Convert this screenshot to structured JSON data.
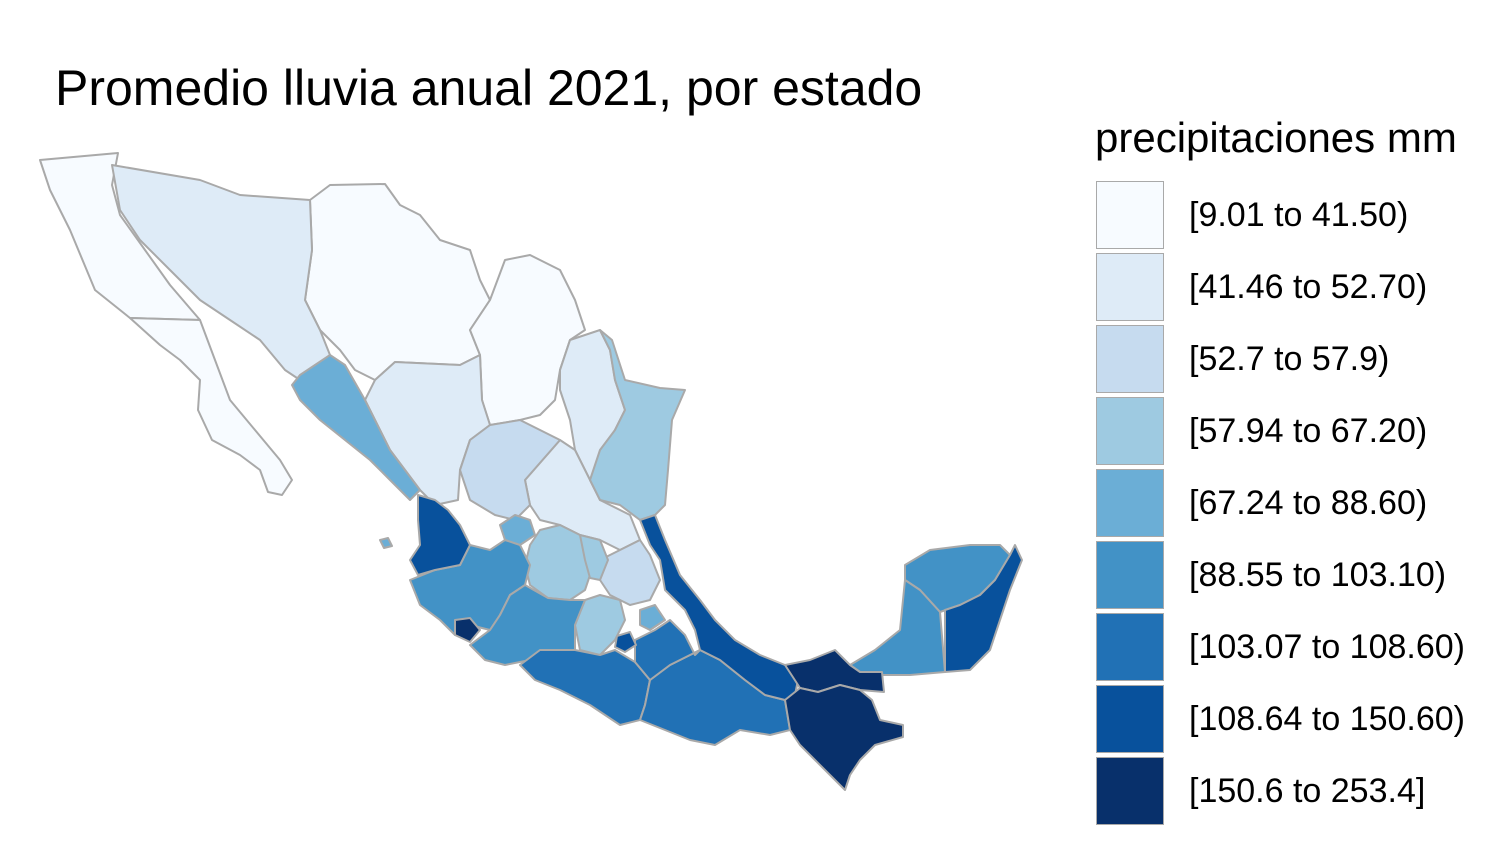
{
  "title": "Promedio lluvia anual 2021, por estado",
  "legend": {
    "title": "precipitaciones mm",
    "bins": [
      {
        "label": "[9.01 to 41.50)",
        "color": "#f7fbff"
      },
      {
        "label": "[41.46 to 52.70)",
        "color": "#deebf7"
      },
      {
        "label": "[52.7 to 57.9)",
        "color": "#c6dbef"
      },
      {
        "label": "[57.94 to 67.20)",
        "color": "#9ecae1"
      },
      {
        "label": "[67.24 to 88.60)",
        "color": "#6baed6"
      },
      {
        "label": "[88.55 to 103.10)",
        "color": "#4292c6"
      },
      {
        "label": "[103.07 to 108.60)",
        "color": "#2171b5"
      },
      {
        "label": "[108.64 to 150.60)",
        "color": "#08519c"
      },
      {
        "label": "[150.6 to 253.4]",
        "color": "#08306b"
      }
    ]
  },
  "colors": {
    "border": "#a9a9a9",
    "background": "#ffffff"
  }
}
